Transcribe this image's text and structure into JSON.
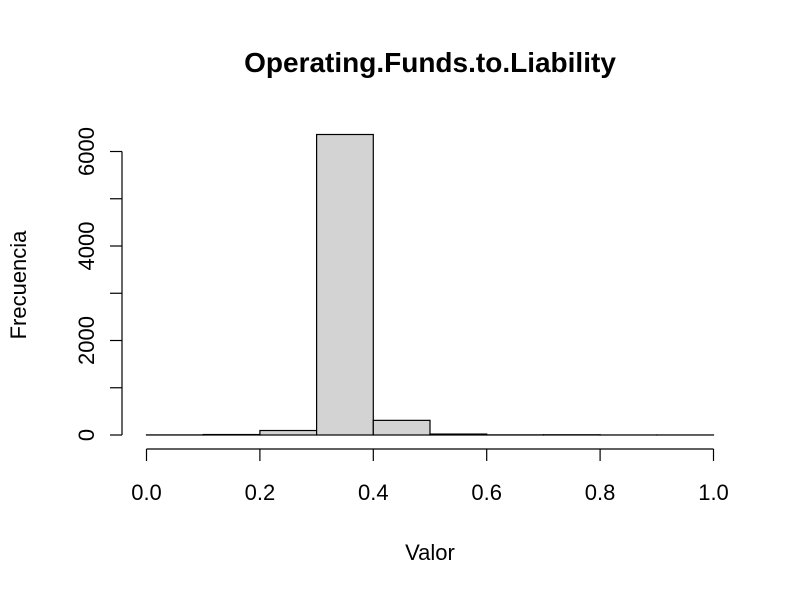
{
  "chart_data": {
    "type": "bar",
    "title": "Operating.Funds.to.Liability",
    "xlabel": "Valor",
    "ylabel": "Frecuencia",
    "bins": [
      {
        "start": 0.0,
        "end": 0.1,
        "count": 2
      },
      {
        "start": 0.1,
        "end": 0.2,
        "count": 10
      },
      {
        "start": 0.2,
        "end": 0.3,
        "count": 95
      },
      {
        "start": 0.3,
        "end": 0.4,
        "count": 6360
      },
      {
        "start": 0.4,
        "end": 0.5,
        "count": 310
      },
      {
        "start": 0.5,
        "end": 0.6,
        "count": 20
      },
      {
        "start": 0.6,
        "end": 0.7,
        "count": 3
      },
      {
        "start": 0.7,
        "end": 0.8,
        "count": 5
      },
      {
        "start": 0.8,
        "end": 0.9,
        "count": 1
      },
      {
        "start": 0.9,
        "end": 1.0,
        "count": 1
      }
    ],
    "xlim": [
      0.0,
      1.0
    ],
    "ylim": [
      0,
      6360
    ],
    "x_ticks": [
      0.0,
      0.2,
      0.4,
      0.6,
      0.8,
      1.0
    ],
    "x_tick_labels": [
      "0.0",
      "0.2",
      "0.4",
      "0.6",
      "0.8",
      "1.0"
    ],
    "y_ticks": [
      0,
      1000,
      2000,
      3000,
      4000,
      5000,
      6000
    ],
    "y_tick_labels": [
      "0",
      "2000",
      "4000",
      "6000"
    ],
    "y_labeled_ticks": [
      0,
      2000,
      4000,
      6000
    ],
    "grid": false,
    "bar_fill": "#d3d3d3",
    "bar_stroke": "#000000"
  }
}
